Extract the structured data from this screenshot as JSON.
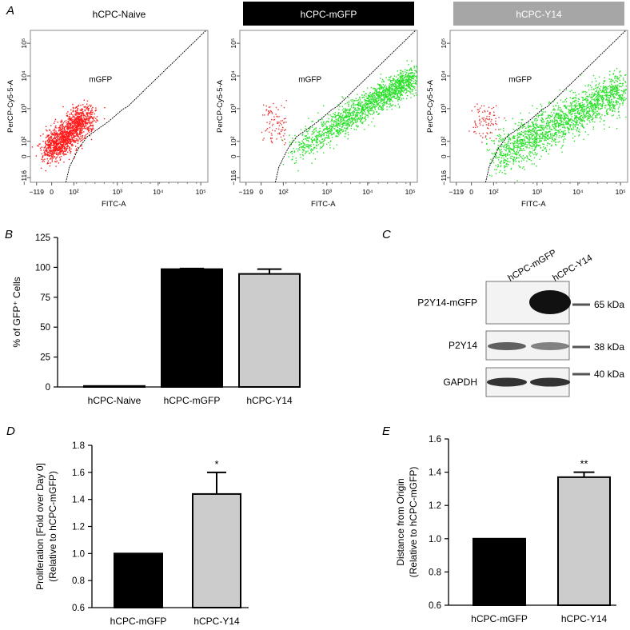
{
  "panels": {
    "A": "A",
    "B": "B",
    "C": "C",
    "D": "D",
    "E": "E"
  },
  "flow": {
    "xlabel": "FITC-A",
    "ylabel": "PerCP-Cy5-5-A",
    "gate_label": "mGFP",
    "xticks": [
      "−119",
      "0",
      "10²",
      "10³",
      "10⁴",
      "10⁵"
    ],
    "yticks": [
      "−116",
      "0",
      "10²",
      "10³",
      "10⁴",
      "10⁵"
    ],
    "plots": [
      {
        "title": "hCPC-Naive",
        "header_bg": "#ffffff",
        "header_fg": "#000000"
      },
      {
        "title": "hCPC-mGFP",
        "header_bg": "#000000",
        "header_fg": "#ffffff"
      },
      {
        "title": "hCPC-Y14",
        "header_bg": "#a6a6a6",
        "header_fg": "#ffffff"
      }
    ]
  },
  "western": {
    "lanes": [
      "hCPC-mGFP",
      "hCPC-Y14"
    ],
    "rows": [
      {
        "label": "P2Y14-mGFP",
        "marker": "65 kDa"
      },
      {
        "label": "P2Y14",
        "marker": "38 kDa"
      },
      {
        "label": "GAPDH",
        "marker": "40 kDa"
      }
    ]
  },
  "chart_data": [
    {
      "panel": "B",
      "type": "bar",
      "categories": [
        "hCPC-Naive",
        "hCPC-mGFP",
        "hCPC-Y14"
      ],
      "values": [
        0.5,
        98.5,
        94.5
      ],
      "errors": [
        0,
        0.5,
        4
      ],
      "colors": [
        "#000000",
        "#000000",
        "#cccccc"
      ],
      "ylabel": "% of GFP⁺ Cells",
      "ylim": [
        0,
        125
      ],
      "yticks": [
        "0",
        "25",
        "50",
        "75",
        "100",
        "125"
      ],
      "annotations": []
    },
    {
      "panel": "D",
      "type": "bar",
      "categories": [
        "hCPC-mGFP",
        "hCPC-Y14"
      ],
      "values": [
        1.0,
        1.44
      ],
      "errors": [
        0,
        0.16
      ],
      "colors": [
        "#000000",
        "#cccccc"
      ],
      "ylabel": "Proliferation [Fold over Day 0]",
      "ylabel2": "(Relative to hCPC-mGFP)",
      "ylim": [
        0.6,
        1.8
      ],
      "yticks": [
        "0.6",
        "0.8",
        "1.0",
        "1.2",
        "1.4",
        "1.6",
        "1.8"
      ],
      "annotations": [
        "",
        "*"
      ]
    },
    {
      "panel": "E",
      "type": "bar",
      "categories": [
        "hCPC-mGFP",
        "hCPC-Y14"
      ],
      "values": [
        1.0,
        1.37
      ],
      "errors": [
        0,
        0.03
      ],
      "colors": [
        "#000000",
        "#cccccc"
      ],
      "ylabel": "Distance from Origin",
      "ylabel2": "(Relative to hCPC-mGFP)",
      "ylim": [
        0.6,
        1.6
      ],
      "yticks": [
        "0.6",
        "0.8",
        "1.0",
        "1.2",
        "1.4",
        "1.6"
      ],
      "annotations": [
        "",
        "**"
      ]
    }
  ]
}
